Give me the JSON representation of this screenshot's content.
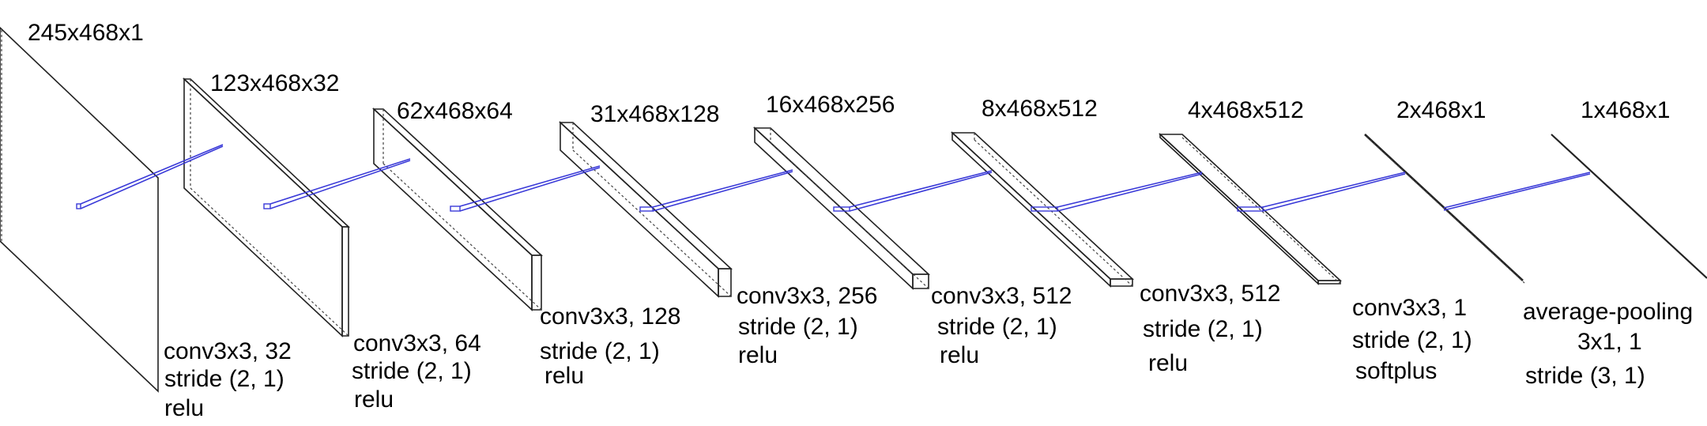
{
  "layers": [
    {
      "dims": "245x468x1",
      "op": [
        "conv3x3, 32",
        "stride (2, 1)",
        "relu"
      ]
    },
    {
      "dims": "123x468x32",
      "op": [
        "conv3x3, 64",
        "stride (2, 1)",
        "relu"
      ]
    },
    {
      "dims": "62x468x64",
      "op": [
        "conv3x3, 128",
        "stride (2, 1)",
        "relu"
      ]
    },
    {
      "dims": "31x468x128",
      "op": [
        "conv3x3, 256",
        "stride (2, 1)",
        "relu"
      ]
    },
    {
      "dims": "16x468x256",
      "op": [
        "conv3x3, 512",
        "stride (2, 1)",
        "relu"
      ]
    },
    {
      "dims": "8x468x512",
      "op": [
        "conv3x3, 512",
        "stride (2, 1)",
        "relu"
      ]
    },
    {
      "dims": "4x468x512",
      "op": [
        "conv3x3, 1",
        "stride (2, 1)",
        "softplus"
      ]
    },
    {
      "dims": "2x468x1",
      "op": [
        "average-pooling",
        "3x1, 1",
        "stride (3, 1)"
      ]
    },
    {
      "dims": "1x468x1",
      "op": []
    }
  ],
  "colors": {
    "edge": "#222222",
    "connection": "#3a3ad8"
  }
}
